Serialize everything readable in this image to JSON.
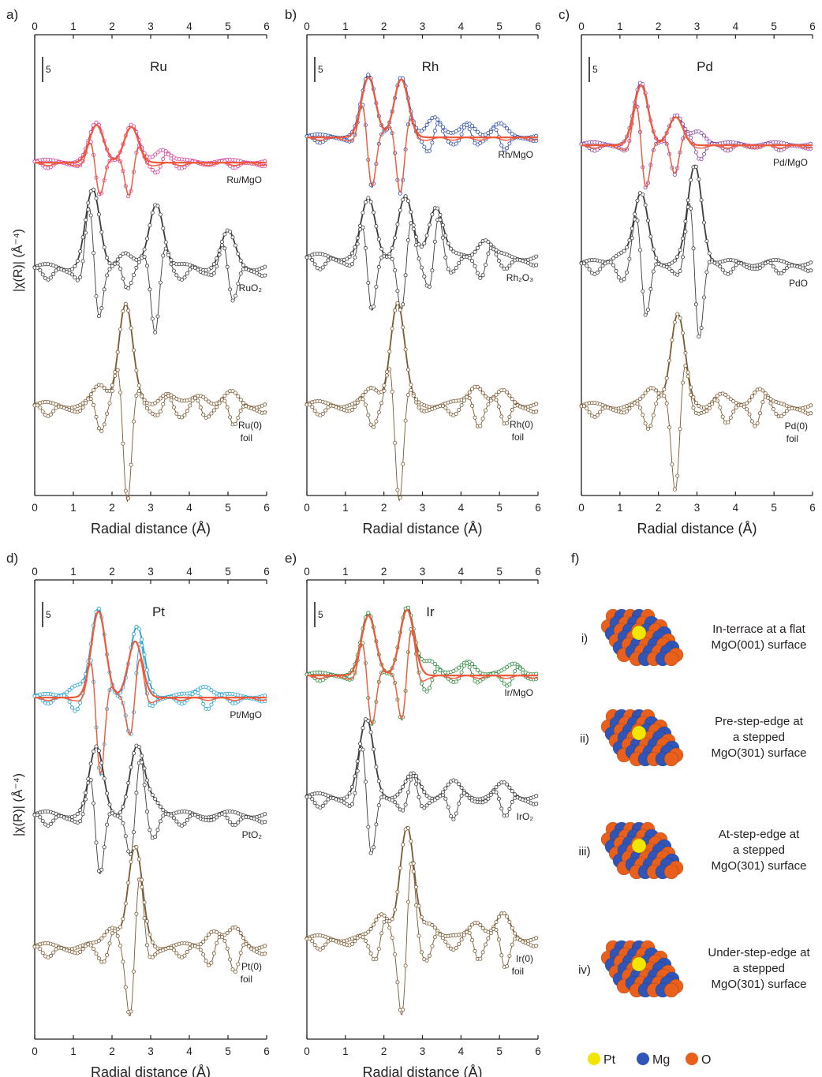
{
  "figure": {
    "y_label": "|χ(R)| (Å⁻⁴)",
    "x_label": "Radial distance (Å)",
    "x_range": [
      0,
      6
    ],
    "x_ticks": [
      "0",
      "1",
      "2",
      "3",
      "4",
      "5",
      "6"
    ],
    "scale_bar_label": "5",
    "fit_color": "#f05a3c"
  },
  "chart_data": [
    {
      "panel": "a)",
      "type": "line",
      "title": "Ru",
      "xlabel": "Radial distance (Å)",
      "xlim": [
        0,
        6
      ],
      "series": [
        {
          "name": "Ru/MgO",
          "color": "#d63a98",
          "peaks": [
            [
              1.6,
              1.0
            ],
            [
              2.5,
              0.95
            ],
            [
              3.3,
              0.35
            ]
          ],
          "noise": 0.12,
          "fit_peaks": [
            [
              1.6,
              1.0
            ],
            [
              2.5,
              0.95
            ]
          ]
        },
        {
          "name": "RuO2",
          "color": "#3c3c3c",
          "peaks": [
            [
              1.5,
              2.0
            ],
            [
              3.15,
              1.75
            ],
            [
              5.0,
              0.9
            ],
            [
              2.3,
              0.4
            ]
          ],
          "noise": 0.22
        },
        {
          "name": "Ru(0) foil",
          "color": "#7a5a32",
          "peaks": [
            [
              2.35,
              2.7
            ],
            [
              1.7,
              0.5
            ],
            [
              3.4,
              0.35
            ],
            [
              4.3,
              0.3
            ],
            [
              5.1,
              0.3
            ]
          ],
          "noise": 0.2
        }
      ]
    },
    {
      "panel": "b)",
      "type": "line",
      "title": "Rh",
      "xlabel": "Radial distance (Å)",
      "xlim": [
        0,
        6
      ],
      "series": [
        {
          "name": "Rh/MgO",
          "color": "#2d4fa8",
          "peaks": [
            [
              1.6,
              1.6
            ],
            [
              2.45,
              1.55
            ],
            [
              3.3,
              0.55
            ],
            [
              4.2,
              0.35
            ],
            [
              5.0,
              0.3
            ]
          ],
          "noise": 0.12,
          "fit_peaks": [
            [
              1.6,
              1.6
            ],
            [
              2.45,
              1.55
            ]
          ]
        },
        {
          "name": "Rh2O3",
          "color": "#3c3c3c",
          "peaks": [
            [
              1.6,
              1.5
            ],
            [
              2.55,
              1.55
            ],
            [
              3.35,
              1.4
            ],
            [
              4.6,
              0.5
            ]
          ],
          "noise": 0.22
        },
        {
          "name": "Rh(0) foil",
          "color": "#7a5a32",
          "peaks": [
            [
              2.35,
              2.7
            ],
            [
              1.7,
              0.4
            ],
            [
              4.4,
              0.55
            ],
            [
              5.1,
              0.3
            ]
          ],
          "noise": 0.2
        }
      ]
    },
    {
      "panel": "c)",
      "type": "line",
      "title": "Pd",
      "xlabel": "Radial distance (Å)",
      "xlim": [
        0,
        6
      ],
      "series": [
        {
          "name": "Pd/MgO",
          "color": "#8a3fa0",
          "peaks": [
            [
              1.55,
              1.6
            ],
            [
              2.45,
              0.75
            ],
            [
              3.05,
              0.35
            ]
          ],
          "noise": 0.12,
          "fit_peaks": [
            [
              1.55,
              1.6
            ],
            [
              2.45,
              0.75
            ]
          ]
        },
        {
          "name": "PdO",
          "color": "#3c3c3c",
          "peaks": [
            [
              1.55,
              1.8
            ],
            [
              2.95,
              2.6
            ],
            [
              1.0,
              0.3
            ]
          ],
          "noise": 0.2
        },
        {
          "name": "Pd(0) foil",
          "color": "#7a5a32",
          "peaks": [
            [
              2.5,
              2.4
            ],
            [
              1.85,
              0.5
            ],
            [
              3.6,
              0.3
            ],
            [
              4.6,
              0.5
            ]
          ],
          "noise": 0.2
        }
      ]
    },
    {
      "panel": "d)",
      "type": "line",
      "title": "Pt",
      "xlabel": "Radial distance (Å)",
      "xlim": [
        0,
        6
      ],
      "series": [
        {
          "name": "Pt/MgO",
          "color": "#1fa3d4",
          "peaks": [
            [
              1.65,
              2.3
            ],
            [
              2.65,
              1.8
            ],
            [
              1.05,
              0.3
            ],
            [
              4.4,
              0.3
            ]
          ],
          "noise": 0.14,
          "fit_peaks": [
            [
              1.65,
              2.3
            ],
            [
              2.6,
              1.5
            ]
          ]
        },
        {
          "name": "PtO2",
          "color": "#3c3c3c",
          "peaks": [
            [
              1.6,
              1.75
            ],
            [
              2.65,
              1.75
            ],
            [
              3.1,
              0.4
            ]
          ],
          "noise": 0.2
        },
        {
          "name": "Pt(0) foil",
          "color": "#7a5a32",
          "peaks": [
            [
              2.6,
              2.6
            ],
            [
              2.0,
              0.55
            ],
            [
              4.6,
              0.45
            ],
            [
              5.2,
              0.45
            ]
          ],
          "noise": 0.2
        }
      ]
    },
    {
      "panel": "e)",
      "type": "line",
      "title": "Ir",
      "xlabel": "Radial distance (Å)",
      "xlim": [
        0,
        6
      ],
      "series": [
        {
          "name": "Ir/MgO",
          "color": "#2a8a3c",
          "peaks": [
            [
              1.6,
              1.6
            ],
            [
              2.6,
              1.75
            ],
            [
              3.2,
              0.4
            ],
            [
              4.2,
              0.35
            ],
            [
              5.4,
              0.3
            ]
          ],
          "noise": 0.12,
          "fit_peaks": [
            [
              1.6,
              1.6
            ],
            [
              2.6,
              1.75
            ]
          ]
        },
        {
          "name": "IrO2",
          "color": "#3c3c3c",
          "peaks": [
            [
              1.55,
              2.0
            ],
            [
              2.75,
              0.55
            ],
            [
              3.8,
              0.35
            ],
            [
              5.1,
              0.3
            ]
          ],
          "noise": 0.2
        },
        {
          "name": "Ir(0) foil",
          "color": "#7a5a32",
          "peaks": [
            [
              2.6,
              2.9
            ],
            [
              1.95,
              0.7
            ],
            [
              3.2,
              0.45
            ],
            [
              4.4,
              0.5
            ],
            [
              5.1,
              0.6
            ]
          ],
          "noise": 0.2
        }
      ]
    }
  ],
  "structures": {
    "panel_label": "f)",
    "items": [
      {
        "roman": "i)",
        "lines": [
          "In-terrace at a flat",
          "MgO(001) surface"
        ]
      },
      {
        "roman": "ii)",
        "lines": [
          "Pre-step-edge at",
          "a stepped",
          "MgO(301) surface"
        ]
      },
      {
        "roman": "iii)",
        "lines": [
          "At-step-edge at",
          "a stepped",
          "MgO(301) surface"
        ]
      },
      {
        "roman": "iv)",
        "lines": [
          "Under-step-edge at",
          "a stepped",
          "MgO(301) surface"
        ]
      }
    ],
    "legend": [
      {
        "label": "Pt",
        "color": "#f2e600"
      },
      {
        "label": "Mg",
        "color": "#2f55b8"
      },
      {
        "label": "O",
        "color": "#e8601c"
      }
    ]
  }
}
